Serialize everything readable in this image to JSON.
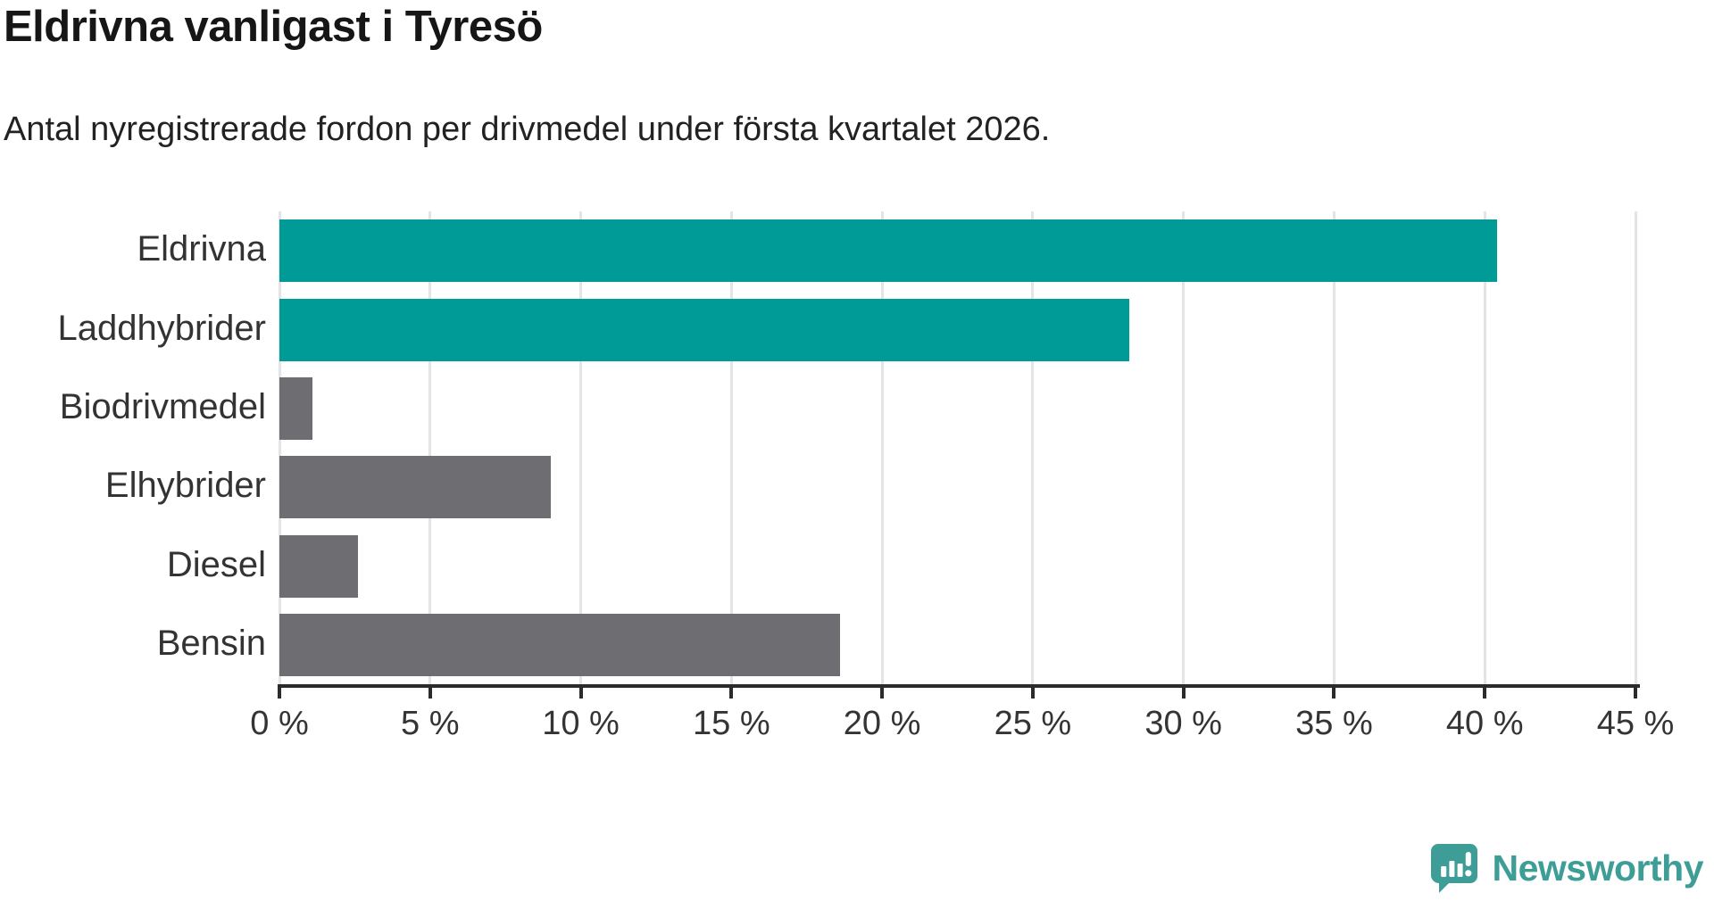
{
  "header": {
    "title": "Eldrivna vanligast i Tyresö",
    "subtitle": "Antal nyregistrerade fordon per drivmedel under första kvartalet 2026."
  },
  "chart_data": {
    "type": "bar",
    "orientation": "horizontal",
    "title": "Eldrivna vanligast i Tyresö",
    "subtitle": "Antal nyregistrerade fordon per drivmedel under första kvartalet 2026.",
    "categories": [
      "Eldrivna",
      "Laddhybrider",
      "Biodrivmedel",
      "Elhybrider",
      "Diesel",
      "Bensin"
    ],
    "values": [
      40.4,
      28.2,
      1.1,
      9.0,
      2.6,
      18.6
    ],
    "unit": "%",
    "xlim": [
      0,
      45
    ],
    "ticks": [
      0,
      5,
      10,
      15,
      20,
      25,
      30,
      35,
      40,
      45
    ],
    "tick_labels": [
      "0 %",
      "5 %",
      "10 %",
      "15 %",
      "20 %",
      "25 %",
      "30 %",
      "35 %",
      "40 %",
      "45 %"
    ],
    "bar_colors": [
      "#009b96",
      "#009b96",
      "#6d6d72",
      "#6d6d72",
      "#6d6d72",
      "#6d6d72"
    ],
    "grid": true,
    "legend": false,
    "ylabel": "",
    "xlabel": ""
  },
  "branding": {
    "brand": "Newsworthy",
    "brand_color": "#3e9e97"
  },
  "colors": {
    "highlight": "#009b96",
    "neutral": "#6d6d72",
    "gridline": "#e4e4e4",
    "axis": "#2b2b2b",
    "title_text": "#161616",
    "label_text": "#333333"
  }
}
